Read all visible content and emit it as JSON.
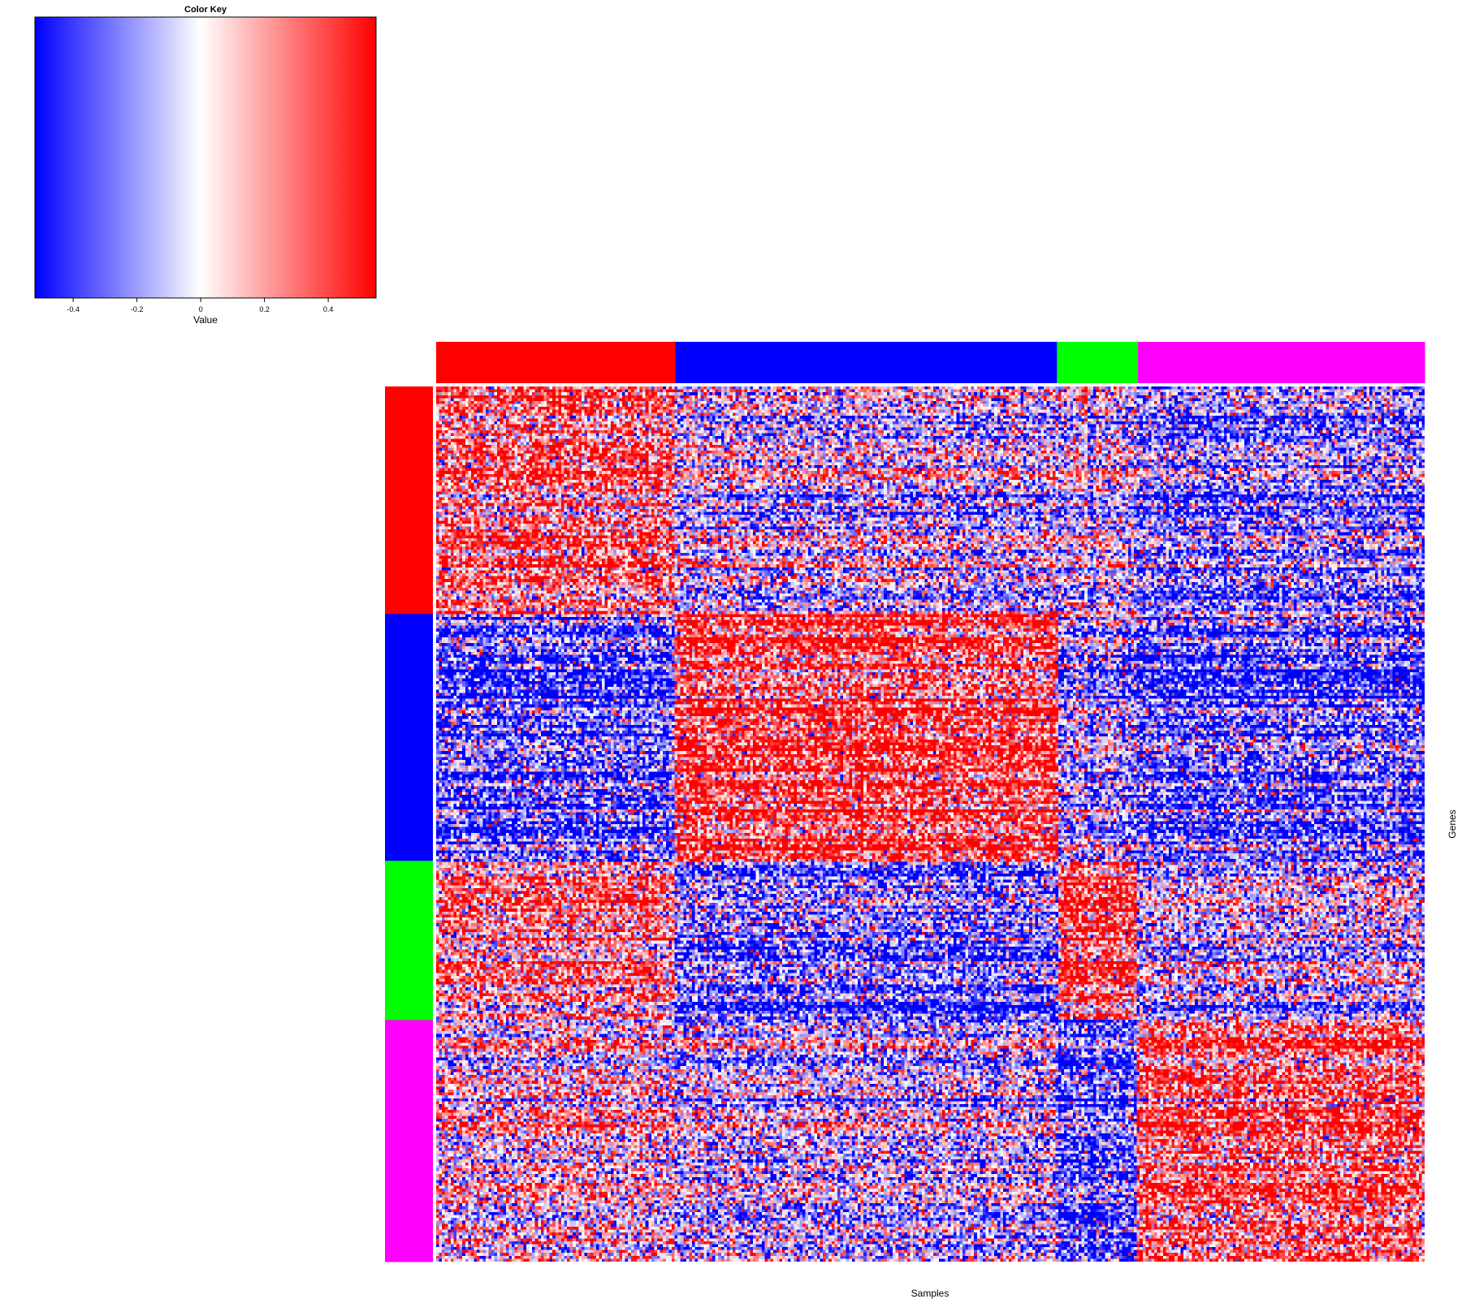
{
  "colors": {
    "low": "#0000ff",
    "mid": "#ffffff",
    "high": "#ff0000",
    "group1": "#ff0000",
    "group2": "#0000ff",
    "group3": "#00ff00",
    "group4": "#ff00ff"
  },
  "chart_data": {
    "type": "heatmap",
    "title": "",
    "xlabel": "Samples",
    "ylabel": "Genes",
    "color_key": {
      "title": "Color Key",
      "label": "Value",
      "range": [
        -0.52,
        0.55
      ],
      "ticks": [
        -0.4,
        -0.2,
        0,
        0.2,
        0.4
      ],
      "tick_labels": [
        "-0.4",
        "-0.2",
        "0",
        "0.2",
        "0.4"
      ]
    },
    "column_groups": [
      {
        "color": "#ff0000",
        "fraction": 0.242
      },
      {
        "color": "#0000ff",
        "fraction": 0.386
      },
      {
        "color": "#00ff00",
        "fraction": 0.082
      },
      {
        "color": "#ff00ff",
        "fraction": 0.29
      }
    ],
    "row_groups": [
      {
        "color": "#ff0000",
        "fraction": 0.26
      },
      {
        "color": "#0000ff",
        "fraction": 0.282
      },
      {
        "color": "#00ff00",
        "fraction": 0.182
      },
      {
        "color": "#ff00ff",
        "fraction": 0.276
      }
    ],
    "block_means": [
      [
        0.3,
        -0.05,
        -0.05,
        -0.2
      ],
      [
        -0.35,
        0.35,
        -0.2,
        -0.35
      ],
      [
        0.2,
        -0.3,
        0.35,
        -0.1
      ],
      [
        0.05,
        -0.1,
        -0.35,
        0.3
      ]
    ],
    "n_rows": 300,
    "n_cols": 340
  }
}
